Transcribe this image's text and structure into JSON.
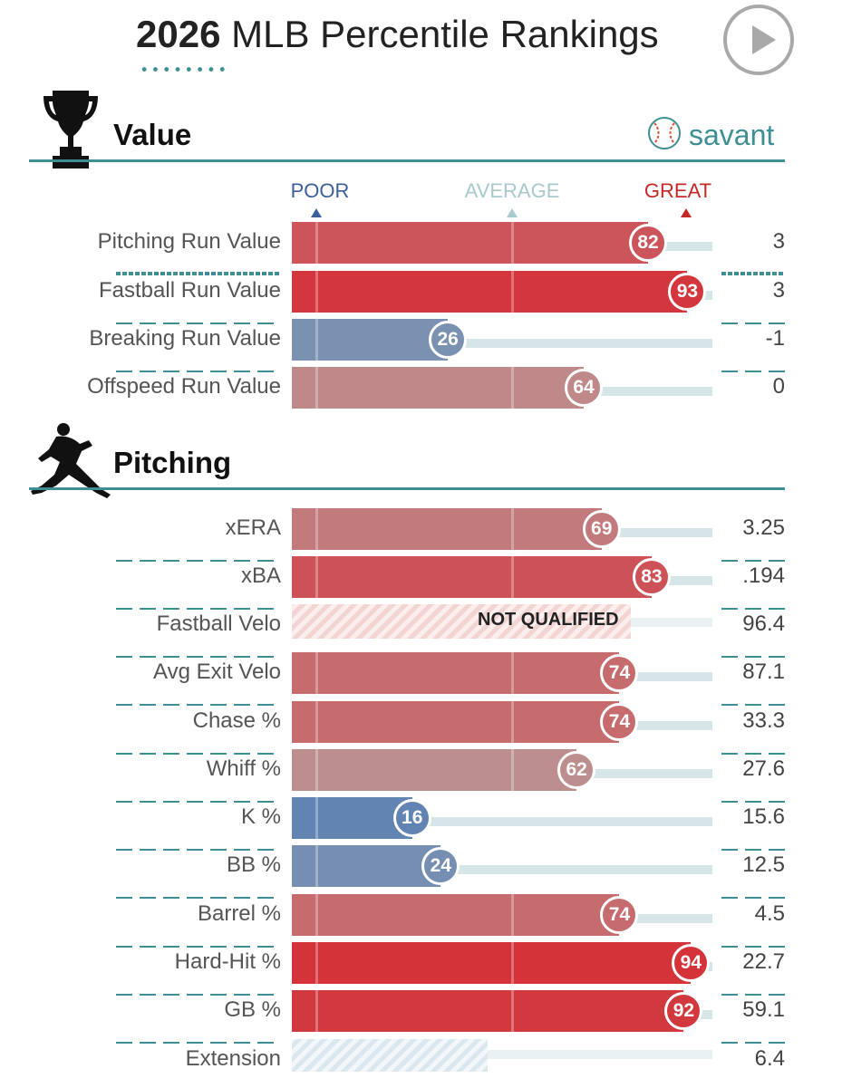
{
  "header": {
    "year": "2026",
    "title_rest": "MLB Percentile Rankings",
    "play_icon": "play-icon"
  },
  "sections": {
    "value": {
      "title": "Value",
      "icon": "trophy-icon"
    },
    "pitching": {
      "title": "Pitching",
      "icon": "pitcher-icon"
    }
  },
  "brand": {
    "label": "savant",
    "icon": "baseball-icon"
  },
  "scale": {
    "poor": "POOR",
    "average": "AVERAGE",
    "great": "GREAT"
  },
  "colors": {
    "teal": "#3d8f93",
    "poor": "#3b6fb6",
    "average": "#aaaaaa",
    "great": "#d32f2f",
    "track": "#d6e6e8"
  },
  "chart_data": [
    {
      "type": "bar",
      "title": "Value",
      "xlim": [
        0,
        100
      ],
      "categories": [
        "Pitching Run Value",
        "Fastball Run Value",
        "Breaking Run Value",
        "Offspeed Run Value"
      ],
      "percentiles": [
        82,
        93,
        26,
        64
      ],
      "values": [
        "3",
        "3",
        "-1",
        "0"
      ]
    },
    {
      "type": "bar",
      "title": "Pitching",
      "xlim": [
        0,
        100
      ],
      "categories": [
        "xERA",
        "xBA",
        "Fastball Velo",
        "Avg Exit Velo",
        "Chase %",
        "Whiff %",
        "K %",
        "BB %",
        "Barrel %",
        "Hard-Hit %",
        "GB %",
        "Extension"
      ],
      "percentiles": [
        69,
        83,
        null,
        74,
        74,
        62,
        16,
        24,
        74,
        94,
        92,
        null
      ],
      "values": [
        "3.25",
        ".194",
        "96.4",
        "87.1",
        "33.3",
        "27.6",
        "15.6",
        "12.5",
        "4.5",
        "22.7",
        "59.1",
        "6.4"
      ],
      "annotations": {
        "Fastball Velo": "NOT QUALIFIED"
      }
    }
  ]
}
